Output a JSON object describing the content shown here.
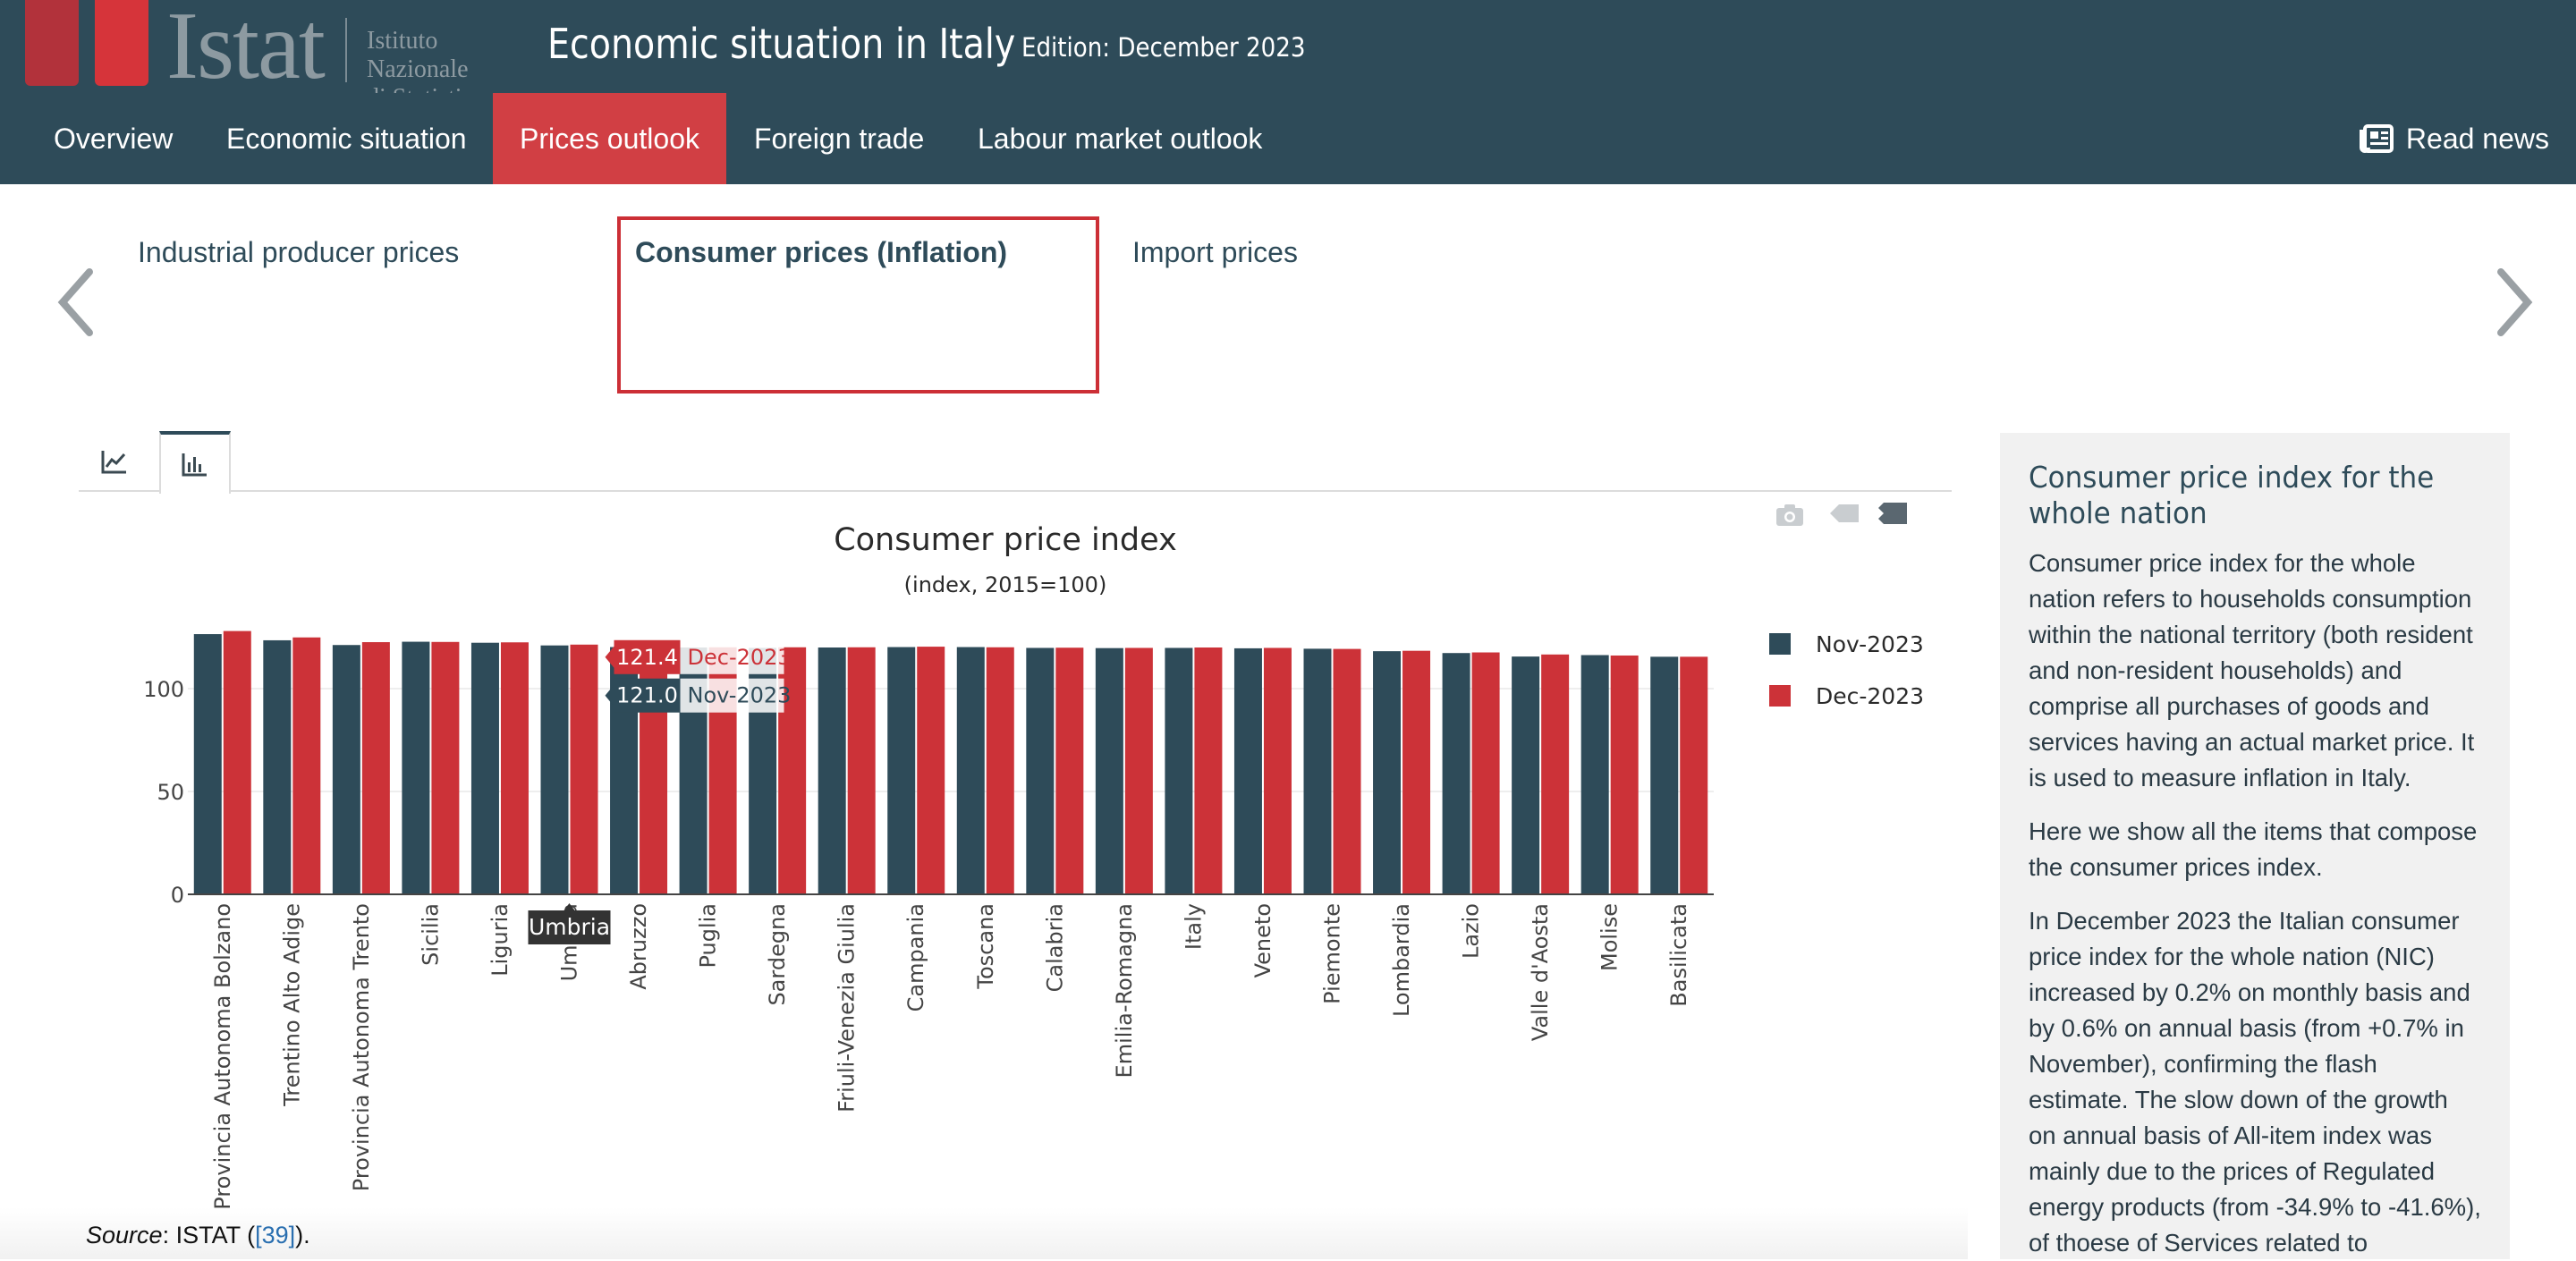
{
  "header": {
    "logo_text": "Istat",
    "logo_subtitle_line1": "Istituto Nazionale",
    "logo_subtitle_line2": "di Statistica",
    "title": "Economic situation in Italy",
    "edition": "Edition: December 2023"
  },
  "nav": {
    "items": [
      {
        "label": "Overview",
        "active": false
      },
      {
        "label": "Economic situation",
        "active": false
      },
      {
        "label": "Prices outlook",
        "active": true
      },
      {
        "label": "Foreign trade",
        "active": false
      },
      {
        "label": "Labour market outlook",
        "active": false
      }
    ],
    "read_news": "Read news"
  },
  "subtabs": [
    {
      "label": "Industrial producer prices",
      "active": false
    },
    {
      "label": "Consumer prices (Inflation)",
      "active": true
    },
    {
      "label": "Import prices",
      "active": false
    }
  ],
  "colors": {
    "header_bg": "#2e4b59",
    "accent_red": "#d13f44",
    "series_nov": "#2e4b59",
    "series_dec": "#cc3238"
  },
  "chart_tabs": [
    {
      "icon": "line-chart-icon",
      "active": false
    },
    {
      "icon": "bar-chart-icon",
      "active": true
    }
  ],
  "chart_data": {
    "type": "bar",
    "title": "Consumer price index",
    "subtitle": "(index, 2015=100)",
    "xlabel": "",
    "ylabel": "",
    "ylim": [
      0,
      130
    ],
    "yticks": [
      0,
      50,
      100
    ],
    "legend_position": "right",
    "categories": [
      "Provincia Autonoma Bolzano",
      "Trentino Alto Adige",
      "Provincia Autonoma Trento",
      "Sicilia",
      "Liguria",
      "Umbria",
      "Abruzzo",
      "Puglia",
      "Sardegna",
      "Friuli-Venezia Giulia",
      "Campania",
      "Toscana",
      "Calabria",
      "Emilia-Romagna",
      "Italy",
      "Veneto",
      "Piemonte",
      "Lombardia",
      "Lazio",
      "Valle d'Aosta",
      "Molise",
      "Basilicata"
    ],
    "series": [
      {
        "name": "Nov-2023",
        "values": [
          126.5,
          123.5,
          121.2,
          122.8,
          122.3,
          121.0,
          120.2,
          120.0,
          119.8,
          120.0,
          120.2,
          120.2,
          119.8,
          119.7,
          119.8,
          119.6,
          119.4,
          118.2,
          117.3,
          115.6,
          116.3,
          115.5
        ]
      },
      {
        "name": "Dec-2023",
        "values": [
          128.0,
          124.9,
          122.6,
          122.7,
          122.5,
          121.4,
          120.5,
          120.1,
          120.1,
          120.1,
          120.4,
          120.1,
          119.9,
          119.8,
          120.0,
          119.8,
          119.3,
          118.4,
          117.6,
          116.6,
          116.1,
          115.5
        ]
      }
    ],
    "hover": {
      "category": "Umbria",
      "labels": [
        {
          "value": "121.4",
          "series": "Dec-2023"
        },
        {
          "value": "121.0",
          "series": "Nov-2023"
        }
      ]
    }
  },
  "sidebar": {
    "title": "Consumer price index for the whole nation",
    "paragraphs": [
      "Consumer price index for the whole nation refers to households consumption within the national territory (both resident and non-resident households) and comprise all purchases of goods and services having an actual market price. It is used to measure inflation in Italy.",
      "Here we show all the items that compose the consumer prices index.",
      "In December 2023 the Italian consumer price index for the whole nation (NIC) increased by 0.2% on monthly basis and by 0.6% on annual basis (from +0.7% in November), confirming the flash estimate. The slow down of the growth on annual basis of All-item index was mainly due to the prices of Regulated energy products (from -34.9% to -41.6%), of thoese of Services related to"
    ]
  },
  "source": {
    "label": "Source",
    "text": ": ISTAT (",
    "ref": "[39]",
    "tail": ")."
  }
}
